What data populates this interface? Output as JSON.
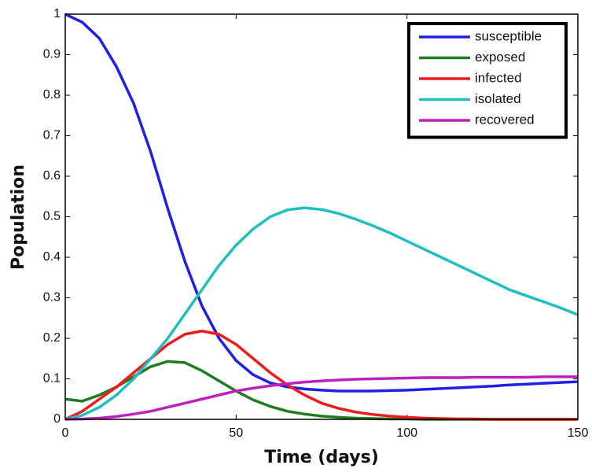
{
  "chart_data": {
    "type": "line",
    "x_label": "Time (days)",
    "y_label": "Population",
    "x": [
      0,
      5,
      10,
      15,
      20,
      25,
      30,
      35,
      40,
      45,
      50,
      55,
      60,
      65,
      70,
      75,
      80,
      85,
      90,
      95,
      100,
      105,
      110,
      115,
      120,
      125,
      130,
      135,
      140,
      145,
      150
    ],
    "series": [
      {
        "name": "susceptible",
        "color": "#1f1fe6",
        "values": [
          1,
          0.98,
          0.94,
          0.87,
          0.78,
          0.66,
          0.52,
          0.39,
          0.28,
          0.2,
          0.145,
          0.11,
          0.09,
          0.08,
          0.075,
          0.072,
          0.07,
          0.07,
          0.07,
          0.071,
          0.072,
          0.074,
          0.076,
          0.078,
          0.08,
          0.082,
          0.085,
          0.087,
          0.089,
          0.091,
          0.093
        ]
      },
      {
        "name": "exposed",
        "color": "#1e7d1e",
        "values": [
          0.05,
          0.045,
          0.06,
          0.08,
          0.105,
          0.13,
          0.143,
          0.14,
          0.12,
          0.095,
          0.07,
          0.048,
          0.032,
          0.02,
          0.013,
          0.008,
          0.005,
          0.003,
          0.002,
          0.001,
          0.001,
          0,
          0,
          0,
          0,
          0,
          0,
          0,
          0,
          0,
          0
        ]
      },
      {
        "name": "infected",
        "color": "#ee1c1c",
        "values": [
          0,
          0.02,
          0.05,
          0.08,
          0.115,
          0.15,
          0.185,
          0.21,
          0.218,
          0.21,
          0.185,
          0.15,
          0.115,
          0.085,
          0.06,
          0.04,
          0.027,
          0.018,
          0.012,
          0.008,
          0.005,
          0.003,
          0.002,
          0.001,
          0.001,
          0,
          0,
          0,
          0,
          0,
          0
        ]
      },
      {
        "name": "isolated",
        "color": "#1fbfbf",
        "values": [
          0,
          0.01,
          0.03,
          0.06,
          0.1,
          0.15,
          0.2,
          0.26,
          0.32,
          0.38,
          0.43,
          0.47,
          0.5,
          0.517,
          0.522,
          0.518,
          0.508,
          0.494,
          0.478,
          0.46,
          0.44,
          0.42,
          0.4,
          0.38,
          0.36,
          0.34,
          0.32,
          0.305,
          0.29,
          0.275,
          0.258
        ]
      },
      {
        "name": "recovered",
        "color": "#bf1fbf",
        "values": [
          0,
          0.001,
          0.003,
          0.007,
          0.013,
          0.02,
          0.03,
          0.04,
          0.05,
          0.06,
          0.07,
          0.077,
          0.083,
          0.088,
          0.092,
          0.095,
          0.097,
          0.099,
          0.1,
          0.101,
          0.102,
          0.103,
          0.103,
          0.103,
          0.104,
          0.104,
          0.104,
          0.104,
          0.105,
          0.105,
          0.105
        ]
      }
    ],
    "xlim": [
      0,
      150
    ],
    "xticks": [
      0,
      50,
      100,
      150
    ],
    "ylim": [
      0,
      1
    ],
    "yticks": [
      0,
      0.1,
      0.2,
      0.3,
      0.4,
      0.5,
      0.6,
      0.7,
      0.8,
      0.9,
      1
    ],
    "legend": "upper right"
  }
}
